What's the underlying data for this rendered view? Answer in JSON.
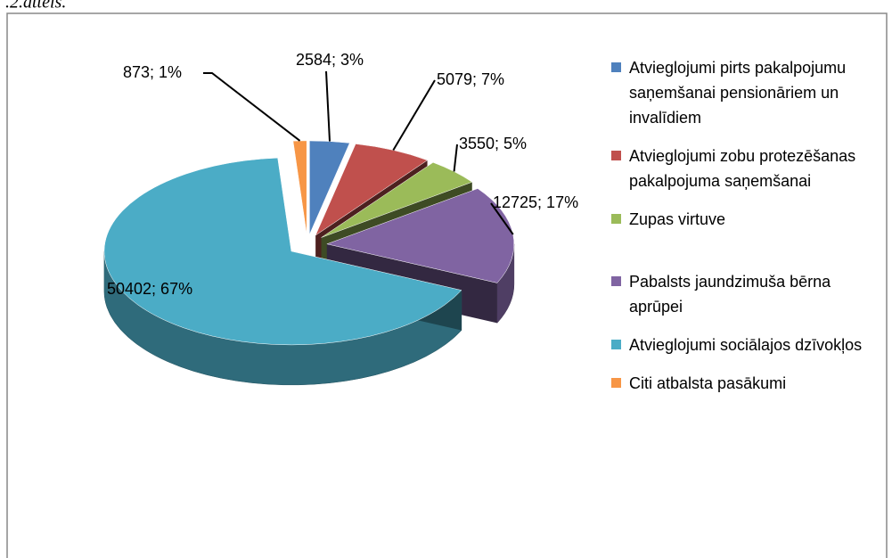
{
  "caption": ".2.attēls.",
  "chart_data": {
    "type": "pie3d",
    "categories": [
      "Atvieglojumi pirts pakalpojumu saņemšanai pensionāriem un invalīdiem",
      "Atvieglojumi zobu protezēšanas pakalpojuma saņemšanai",
      "Zupas virtuve",
      "Pabalsts jaundzimuša bērna aprūpei",
      "Atvieglojumi sociālajos dzīvokļos",
      "Citi atbalsta pasākumi"
    ],
    "values": [
      2584,
      5079,
      3550,
      12725,
      50402,
      873
    ],
    "value_labels": [
      "2584; 3%",
      "5079; 7%",
      "3550; 5%",
      "12725; 17%",
      "50402; 67%",
      "873; 1%"
    ],
    "colors": [
      "#4f81bd",
      "#c0504d",
      "#9bbb59",
      "#8064a2",
      "#4bacc6",
      "#f79646"
    ],
    "legend": "right"
  }
}
